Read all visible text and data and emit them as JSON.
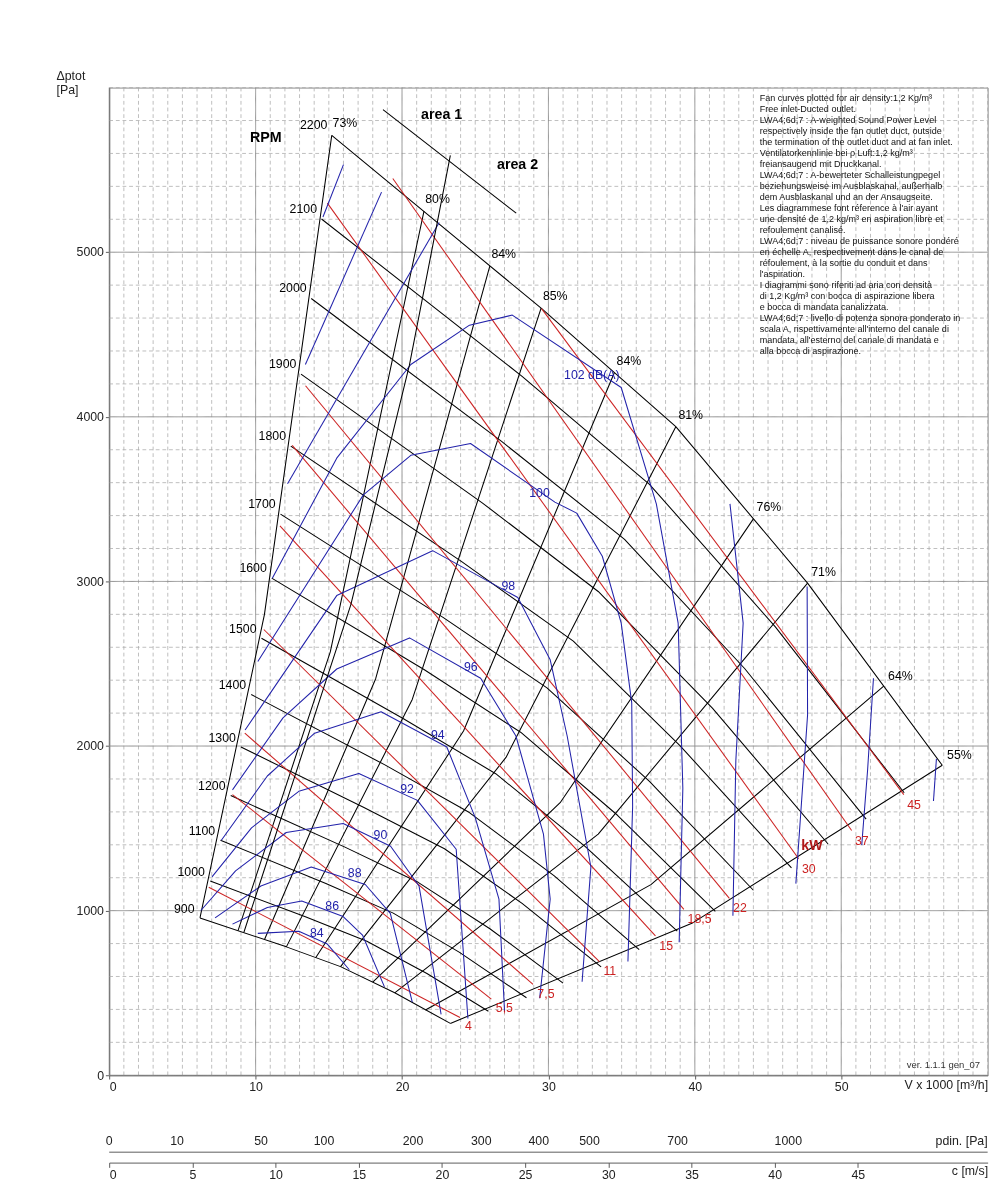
{
  "chart_data": {
    "type": "line",
    "ylabel": "Δptot [Pa]",
    "xlabel": "V x 1000 [m³/h]",
    "x2label": "c [m/s]",
    "xlim": [
      0,
      60
    ],
    "ylim": [
      0,
      6000
    ],
    "x2lim": [
      0,
      52.8
    ],
    "grid": true,
    "legend": false,
    "xticks": [
      0,
      {
        "value": 1,
        "label": null
      },
      {
        "value": 2,
        "label": null
      },
      {
        "value": 3,
        "label": null
      },
      {
        "value": 4,
        "label": null
      },
      {
        "value": 5,
        "label": null
      },
      {
        "value": 6,
        "label": null
      },
      {
        "value": 7,
        "label": null
      },
      {
        "value": 8,
        "label": null
      },
      {
        "value": 9,
        "label": null
      },
      10,
      {
        "value": 11,
        "label": null
      },
      {
        "value": 12,
        "label": null
      },
      {
        "value": 13,
        "label": null
      },
      {
        "value": 14,
        "label": null
      },
      {
        "value": 15,
        "label": null
      },
      {
        "value": 16,
        "label": null
      },
      {
        "value": 17,
        "label": null
      },
      {
        "value": 18,
        "label": null
      },
      {
        "value": 19,
        "label": null
      },
      20,
      {
        "value": 21,
        "label": null
      },
      {
        "value": 22,
        "label": null
      },
      {
        "value": 23,
        "label": null
      },
      {
        "value": 24,
        "label": null
      },
      {
        "value": 25,
        "label": null
      },
      {
        "value": 26,
        "label": null
      },
      {
        "value": 27,
        "label": null
      },
      {
        "value": 28,
        "label": null
      },
      {
        "value": 29,
        "label": null
      },
      30,
      {
        "value": 31,
        "label": null
      },
      {
        "value": 32,
        "label": null
      },
      {
        "value": 33,
        "label": null
      },
      {
        "value": 34,
        "label": null
      },
      {
        "value": 35,
        "label": null
      },
      {
        "value": 36,
        "label": null
      },
      {
        "value": 37,
        "label": null
      },
      {
        "value": 38,
        "label": null
      },
      {
        "value": 39,
        "label": null
      },
      40,
      {
        "value": 41,
        "label": null
      },
      {
        "value": 42,
        "label": null
      },
      {
        "value": 43,
        "label": null
      },
      {
        "value": 44,
        "label": null
      },
      {
        "value": 45,
        "label": null
      },
      {
        "value": 46,
        "label": null
      },
      {
        "value": 47,
        "label": null
      },
      {
        "value": 48,
        "label": null
      },
      {
        "value": 49,
        "label": null
      },
      50,
      {
        "value": 51,
        "label": null
      },
      {
        "value": 52,
        "label": null
      },
      {
        "value": 53,
        "label": null
      },
      {
        "value": 54,
        "label": null
      },
      {
        "value": 55,
        "label": null
      },
      {
        "value": 56,
        "label": null
      },
      {
        "value": 57,
        "label": null
      },
      {
        "value": 58,
        "label": null
      },
      {
        "value": 59,
        "label": null
      },
      {
        "value": 60,
        "label": null
      }
    ],
    "yticks": [
      0,
      {
        "value": 200,
        "label": null
      },
      {
        "value": 400,
        "label": null
      },
      {
        "value": 600,
        "label": null
      },
      {
        "value": 800,
        "label": null
      },
      1000,
      {
        "value": 1200,
        "label": null
      },
      {
        "value": 1400,
        "label": null
      },
      {
        "value": 1600,
        "label": null
      },
      {
        "value": 1800,
        "label": null
      },
      2000,
      {
        "value": 2200,
        "label": null
      },
      {
        "value": 2400,
        "label": null
      },
      {
        "value": 2600,
        "label": null
      },
      {
        "value": 2800,
        "label": null
      },
      3000,
      {
        "value": 3200,
        "label": null
      },
      {
        "value": 3400,
        "label": null
      },
      {
        "value": 3600,
        "label": null
      },
      {
        "value": 3800,
        "label": null
      },
      4000,
      {
        "value": 4200,
        "label": null
      },
      {
        "value": 4400,
        "label": null
      },
      {
        "value": 4600,
        "label": null
      },
      {
        "value": 4800,
        "label": null
      },
      5000,
      {
        "value": 5200,
        "label": null
      },
      {
        "value": 5400,
        "label": null
      },
      {
        "value": 5600,
        "label": null
      },
      {
        "value": 5800,
        "label": null
      },
      {
        "value": 6000,
        "label": null
      }
    ],
    "x2ticks": [
      0,
      5,
      10,
      15,
      20,
      25,
      30,
      35,
      40,
      45
    ],
    "series": [
      {
        "name": "2200",
        "color": "#000000",
        "x": [
          15.2,
          29.5,
          38.7,
          47.7,
          56.9
        ],
        "values": [
          5710,
          4660,
          3940,
          2990,
          1883
        ]
      },
      {
        "name": "2100",
        "color": "#000000",
        "x": [
          14.5,
          28.2,
          36.9,
          45.5,
          54.3
        ],
        "values": [
          5202,
          4246,
          3590,
          2724,
          1716
        ]
      },
      {
        "name": "2000",
        "color": "#000000",
        "x": [
          13.8,
          26.8,
          35.2,
          43.4,
          51.7
        ],
        "values": [
          4719,
          3851,
          3256,
          2471,
          1556
        ]
      },
      {
        "name": "1900",
        "color": "#000000",
        "x": [
          13.1,
          25.5,
          33.4,
          41.2,
          49.1
        ],
        "values": [
          4259,
          3476,
          2939,
          2230,
          1405
        ]
      },
      {
        "name": "1800",
        "color": "#000000",
        "x": [
          12.4,
          24.1,
          31.7,
          39.0,
          46.6
        ],
        "values": [
          3822,
          3119,
          2637,
          2001,
          1260
        ]
      },
      {
        "name": "1700",
        "color": "#000000",
        "x": [
          11.7,
          22.8,
          29.9,
          36.9,
          44.0
        ],
        "values": [
          3409,
          2782,
          2353,
          1785,
          1124
        ]
      },
      {
        "name": "1600",
        "color": "#000000",
        "x": [
          11.1,
          21.5,
          28.1,
          34.7,
          41.4
        ],
        "values": [
          3020,
          2465,
          2084,
          1581,
          996
        ]
      },
      {
        "name": "1500",
        "color": "#000000",
        "x": [
          10.4,
          20.1,
          26.4,
          32.5,
          38.8
        ],
        "values": [
          2655,
          2166,
          1832,
          1390,
          875
        ]
      },
      {
        "name": "1400",
        "color": "#000000",
        "x": [
          9.7,
          18.8,
          24.6,
          30.4,
          36.2
        ],
        "values": [
          2313,
          1887,
          1596,
          1211,
          763
        ]
      },
      {
        "name": "1300",
        "color": "#000000",
        "x": [
          9.0,
          17.4,
          22.9,
          28.2,
          33.6
        ],
        "values": [
          1994,
          1627,
          1376,
          1044,
          658
        ]
      },
      {
        "name": "1200",
        "color": "#000000",
        "x": [
          8.3,
          16.1,
          21.1,
          26.0,
          31.0
        ],
        "values": [
          1699,
          1386,
          1172,
          890,
          560
        ]
      },
      {
        "name": "1100",
        "color": "#000000",
        "x": [
          7.6,
          14.8,
          19.4,
          23.9,
          28.5
        ],
        "values": [
          1428,
          1165,
          985,
          748,
          471
        ]
      },
      {
        "name": "1000",
        "color": "#000000",
        "x": [
          6.9,
          13.4,
          17.6,
          21.7,
          25.9
        ],
        "values": [
          1180,
          963,
          814,
          618,
          389
        ]
      },
      {
        "name": "900",
        "color": "#000000",
        "x": [
          6.2,
          12.1,
          15.8,
          19.5,
          23.3
        ],
        "values": [
          956,
          780,
          660,
          501,
          315
        ]
      },
      {
        "name": "73%",
        "color": "#000000",
        "x": [
          15.2,
          10.6,
          6.2
        ],
        "values": [
          5710,
          2798,
          956
        ]
      },
      {
        "name": "80%",
        "color": "#000000",
        "x": [
          21.5,
          15.1,
          8.8
        ],
        "values": [
          5250,
          2572,
          879
        ]
      },
      {
        "name": "84%",
        "color": "#000000",
        "x": [
          26,
          18.2,
          10.6
        ],
        "values": [
          4917,
          2409,
          823
        ]
      },
      {
        "name": "85%",
        "color": "#000000",
        "x": [
          29.5,
          20.7,
          12.1
        ],
        "values": [
          4660,
          2283,
          780
        ]
      },
      {
        "name": "84%",
        "color": "#000000",
        "x": [
          34.5,
          24.2,
          14.1
        ],
        "values": [
          4268,
          2091,
          714
        ]
      },
      {
        "name": "81%",
        "color": "#000000",
        "x": [
          38.7,
          27.1,
          15.8
        ],
        "values": [
          3940,
          1931,
          660
        ]
      },
      {
        "name": "76%",
        "color": "#000000",
        "x": [
          44,
          30.8,
          18.0
        ],
        "values": [
          3380,
          1656,
          566
        ]
      },
      {
        "name": "71%",
        "color": "#000000",
        "x": [
          47.7,
          33.4,
          19.5
        ],
        "values": [
          2990,
          1465,
          501
        ]
      },
      {
        "name": "64%",
        "color": "#000000",
        "x": [
          52.9,
          37.0,
          21.6
        ],
        "values": [
          2364,
          1158,
          396
        ]
      },
      {
        "name": "55%",
        "color": "#000000",
        "x": [
          56.9,
          39.8,
          23.3
        ],
        "values": [
          1883,
          923,
          315
        ]
      },
      {
        "name": "4",
        "color": "#cc2222",
        "x": [
          23.96,
          6.8
        ],
        "values": [
          351,
          1142
        ]
      },
      {
        "name": "5,5",
        "color": "#cc2222",
        "x": [
          26.1,
          8.42
        ],
        "values": [
          462,
          1705
        ]
      },
      {
        "name": "7,5",
        "color": "#cc2222",
        "x": [
          28.95,
          9.26
        ],
        "values": [
          552,
          2078
        ]
      },
      {
        "name": "11",
        "color": "#cc2222",
        "x": [
          33.48,
          10.56
        ],
        "values": [
          691,
          2708
        ]
      },
      {
        "name": "15",
        "color": "#cc2222",
        "x": [
          37.31,
          11.66
        ],
        "values": [
          847,
          3337
        ]
      },
      {
        "name": "18,5",
        "color": "#cc2222",
        "x": [
          39.25,
          12.5
        ],
        "values": [
          1008,
          3827
        ]
      },
      {
        "name": "22",
        "color": "#cc2222",
        "x": [
          42.36,
          13.41
        ],
        "values": [
          1075,
          4189
        ]
      },
      {
        "name": "30",
        "color": "#cc2222",
        "x": [
          47.09,
          14.9
        ],
        "values": [
          1315,
          5298
        ]
      },
      {
        "name": "37",
        "color": "#cc2222",
        "x": [
          50.71,
          19.37
        ],
        "values": [
          1487,
          5448
        ]
      },
      {
        "name": "45",
        "color": "#cc2222",
        "x": [
          54.27,
          29.53
        ],
        "values": [
          1705,
          4657
        ]
      },
      {
        "name": "84",
        "color": "#2222aa",
        "x": [
          10.15,
          12.95,
          14.9,
          16.4
        ],
        "values": [
          862,
          875,
          797,
          641
        ]
      },
      {
        "name": "86",
        "color": "#2222aa",
        "x": [
          8.42,
          10.8,
          13.15,
          15.98,
          17.3,
          18.8
        ],
        "values": [
          918,
          1019,
          1058,
          964,
          852,
          537
        ]
      },
      {
        "name": "88",
        "color": "#2222aa",
        "x": [
          7.23,
          10.36,
          13.8,
          17.49,
          19.2,
          20.7
        ],
        "values": [
          956,
          1150,
          1265,
          1159,
          983,
          444
        ]
      },
      {
        "name": "90",
        "color": "#2222aa",
        "x": [
          6.26,
          8.63,
          12.09,
          15.98,
          19.22,
          21.16,
          22.67
        ],
        "values": [
          1001,
          1242,
          1475,
          1530,
          1391,
          1150,
          370
        ]
      },
      {
        "name": "92",
        "color": "#2222aa",
        "x": [
          7.02,
          9.72,
          12.95,
          17.05,
          21.05,
          23.7,
          24.5
        ],
        "values": [
          1205,
          1503,
          1725,
          1833,
          1670,
          1373,
          345
        ]
      },
      {
        "name": "94",
        "color": "#2222aa",
        "x": [
          7.66,
          10.8,
          14.03,
          18.57,
          23.06,
          25.0,
          26.62,
          27.0
        ],
        "values": [
          1428,
          1818,
          2078,
          2208,
          1994,
          1565,
          1070,
          390
        ]
      },
      {
        "name": "96",
        "color": "#2222aa",
        "x": [
          8.42,
          11.87,
          15.54,
          20.51,
          25.37,
          27.78,
          29.66,
          30.12,
          29.4
        ],
        "values": [
          1734,
          2171,
          2468,
          2657,
          2412,
          2061,
          1465,
          1070,
          468
        ]
      },
      {
        "name": "98",
        "color": "#2222aa",
        "x": [
          9.28,
          15.54,
          22.09,
          27.91,
          30.12,
          31.28,
          32.9,
          32.3
        ],
        "values": [
          2097,
          2914,
          3187,
          2902,
          2524,
          2061,
          1265,
          568
        ]
      },
      {
        "name": "100",
        "color": "#2222aa",
        "x": [
          10.15,
          17.36,
          20.6,
          24.68,
          30.44,
          31.93,
          33.68,
          34.97,
          35.69,
          35.75,
          35.43
        ],
        "values": [
          2514,
          3526,
          3766,
          3838,
          3482,
          3415,
          3153,
          2747,
          2262,
          1632,
          691
        ]
      },
      {
        "name": "102 dB(A)",
        "color": "#2222aa",
        "x": [
          11.14,
          15.54,
          20.6,
          24.61,
          27.53,
          34.97,
          37.37,
          38.86,
          39.18,
          38.93
        ],
        "values": [
          3019,
          3749,
          4318,
          4557,
          4618,
          4178,
          3471,
          2747,
          1744,
          808
        ]
      },
      {
        "color": "#2222aa",
        "x": [
          12.18,
          22.54
        ],
        "values": [
          3593,
          5181
        ]
      },
      {
        "color": "#2222aa",
        "x": [
          13.4,
          18.6
        ],
        "values": [
          4318,
          5365
        ]
      },
      {
        "color": "#2222aa",
        "x": [
          14.6,
          16.0
        ],
        "values": [
          5214,
          5532
        ]
      },
      {
        "color": "#2222aa",
        "x": [
          42.4,
          43.3,
          42.8,
          42.6
        ],
        "values": [
          3471,
          2747,
          1911,
          969
        ]
      },
      {
        "color": "#2222aa",
        "x": [
          47.67,
          47.7,
          46.9
        ],
        "values": [
          2969,
          2189,
          1164
        ]
      },
      {
        "color": "#2222aa",
        "x": [
          52.2,
          51.8,
          51.4
        ],
        "values": [
          2412,
          1855,
          1398
        ]
      },
      {
        "color": "#2222aa",
        "x": [
          56.5,
          56.3
        ],
        "values": [
          1922,
          1666
        ]
      },
      {
        "color": "#000000",
        "x": [
          9.2,
          16.5,
          20.5,
          23.3
        ],
        "values": [
          869,
          2858,
          4312,
          5588
        ]
      },
      {
        "color": "#000000",
        "x": [
          18.7,
          27.8
        ],
        "values": [
          5866,
          5237
        ]
      }
    ],
    "annotations": [
      "area 1",
      "area 2",
      "RPM",
      {
        "text": "kW",
        "x": 48.0,
        "y": 1400
      },
      "Fan curves plotted for air density:1,2 Kg/m³\nFree inlet-Ducted outlet.\nLWA4;6d;7 : A-weighted Sound Power Level\nrespectively inside the fan outlet duct, outside\nthe termination of the outlet duct and at fan inlet.",
      "Ventilatorkennlinie bei ρ Luft:1,2 kg/m³\nfreiansaugend mit Druckkanal.\nLWA4;6d;7 : A-bewerteter Schalleistungpegel\nbeziehungsweise im Ausblaskanal, außerhalb\ndem Ausblaskanal und an der Ansaugseite.",
      "Les diagrammese font réference à l'air ayant\nune densité de 1,2 kg/m³ en aspiration libre et\nrefoulement canalisé.\nLWA4;6d;7 : niveau de puissance sonore pondéré\nen échelle A, respectivement dans le canal de\nréfoulement, à la sortie du conduit et dans\nl'aspiration.",
      "I diagrammi sono riferiti ad aria con densità\ndi 1,2 Kg/m³ con bocca di aspirazione libera\ne bocca di mandata canalizzata.\nLWA4;6d;7 : livello di potenza sonora ponderato in\nscala A, rispettivamente all'interno del canale di\nmandata, all'esterno del canale di mandata e\nalla bocca di aspirazione.",
      "ver. 1.1.1 gen_07",
      "pdin. [Pa]",
      "0",
      "10",
      "50",
      "100",
      "200",
      "300",
      "400",
      "500",
      "700",
      "1000"
    ]
  }
}
